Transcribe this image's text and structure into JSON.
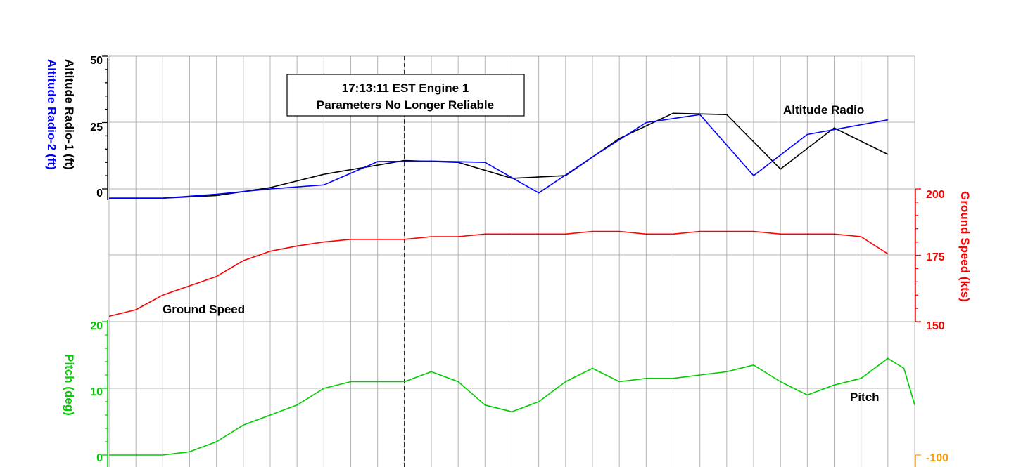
{
  "chart_data": {
    "type": "line",
    "annotations": {
      "event_line1": "17:13:11 EST Engine 1",
      "event_line2": "Parameters No Longer Reliable",
      "altitude_label": "Altitude Radio",
      "ground_speed_label": "Ground Speed",
      "pitch_label": "Pitch"
    },
    "colors": {
      "altitude_radio_1": "#000000",
      "altitude_radio_2": "#0000ff",
      "ground_speed": "#ff0000",
      "pitch": "#00cc00",
      "extra_axis": "#ff9900",
      "grid": "#b4b4b4"
    },
    "axes": {
      "altitude": {
        "label1": "Altitude Radio-1 (ft)",
        "label2": "Altitude Radio-2 (ft)",
        "ticks": [
          "50",
          "25",
          "0"
        ],
        "range": [
          0,
          50
        ]
      },
      "ground_speed": {
        "label": "Ground Speed (kts)",
        "ticks": [
          "200",
          "175",
          "150"
        ],
        "range": [
          150,
          200
        ]
      },
      "pitch": {
        "label": "Pitch (deg)",
        "ticks": [
          "20",
          "10",
          "0"
        ],
        "range": [
          0,
          20
        ]
      },
      "extra_right": {
        "ticks": [
          "-100"
        ]
      }
    },
    "grid": true,
    "x": [
      0,
      0.5,
      1,
      1.5,
      2,
      2.5,
      3,
      3.5,
      4,
      4.5,
      5,
      5.5,
      6,
      6.5,
      7,
      7.5,
      8,
      8.5,
      9,
      9.5,
      10,
      10.5,
      11,
      11.5,
      12,
      12.5,
      13,
      13.5,
      14,
      14.5,
      15
    ],
    "event_x": 5.5,
    "series": [
      {
        "key": "altitude_radio_1",
        "axis": "altitude",
        "points": [
          [
            0,
            -3.5
          ],
          [
            1,
            -3.5
          ],
          [
            2,
            -2.5
          ],
          [
            3,
            0.5
          ],
          [
            4,
            5.5
          ],
          [
            5.5,
            10.7
          ],
          [
            6.5,
            10
          ],
          [
            7.5,
            4
          ],
          [
            8.5,
            5
          ],
          [
            9.5,
            19
          ],
          [
            10.5,
            28.5
          ],
          [
            11.5,
            28
          ],
          [
            12.5,
            7.5
          ],
          [
            13.5,
            23
          ],
          [
            14.5,
            13
          ]
        ]
      },
      {
        "key": "altitude_radio_2",
        "axis": "altitude",
        "points": [
          [
            0,
            -3.5
          ],
          [
            1,
            -3.5
          ],
          [
            2,
            -2
          ],
          [
            3,
            0
          ],
          [
            4,
            1.5
          ],
          [
            5,
            10.3
          ],
          [
            6,
            10.5
          ],
          [
            7,
            10
          ],
          [
            8,
            -1.5
          ],
          [
            9,
            12
          ],
          [
            10,
            25
          ],
          [
            11,
            28
          ],
          [
            12,
            5
          ],
          [
            13,
            20.5
          ],
          [
            14.5,
            26
          ]
        ]
      },
      {
        "key": "ground_speed",
        "axis": "ground_speed",
        "points": [
          [
            0,
            152
          ],
          [
            0.5,
            154.5
          ],
          [
            1,
            160
          ],
          [
            1.5,
            163.5
          ],
          [
            2,
            167
          ],
          [
            2.5,
            173
          ],
          [
            3,
            176.5
          ],
          [
            3.5,
            178.5
          ],
          [
            4,
            180
          ],
          [
            4.5,
            181
          ],
          [
            5,
            181
          ],
          [
            5.5,
            181
          ],
          [
            6,
            182
          ],
          [
            6.5,
            182
          ],
          [
            7,
            183
          ],
          [
            7.5,
            183
          ],
          [
            8,
            183
          ],
          [
            8.5,
            183
          ],
          [
            9,
            184
          ],
          [
            9.5,
            184
          ],
          [
            10,
            183
          ],
          [
            10.5,
            183
          ],
          [
            11,
            184
          ],
          [
            11.5,
            184
          ],
          [
            12,
            184
          ],
          [
            12.5,
            183
          ],
          [
            13,
            183
          ],
          [
            13.5,
            183
          ],
          [
            14,
            182
          ],
          [
            14.5,
            175.5
          ]
        ]
      },
      {
        "key": "pitch",
        "axis": "pitch",
        "points": [
          [
            0,
            0
          ],
          [
            0.5,
            0
          ],
          [
            1,
            0
          ],
          [
            1.5,
            0.5
          ],
          [
            2,
            2
          ],
          [
            2.5,
            4.5
          ],
          [
            3,
            6
          ],
          [
            3.5,
            7.5
          ],
          [
            4,
            10
          ],
          [
            4.5,
            11
          ],
          [
            5,
            11
          ],
          [
            5.5,
            11
          ],
          [
            6,
            12.5
          ],
          [
            6.5,
            11
          ],
          [
            7,
            7.5
          ],
          [
            7.5,
            6.5
          ],
          [
            8,
            8
          ],
          [
            8.5,
            11
          ],
          [
            9,
            13
          ],
          [
            9.5,
            11
          ],
          [
            10,
            11.5
          ],
          [
            10.5,
            11.5
          ],
          [
            11,
            12
          ],
          [
            11.5,
            12.5
          ],
          [
            12,
            13.5
          ],
          [
            12.5,
            11
          ],
          [
            13,
            9
          ],
          [
            13.5,
            10.5
          ],
          [
            14,
            11.5
          ],
          [
            14.5,
            14.5
          ],
          [
            14.8,
            13
          ],
          [
            15,
            7.5
          ]
        ]
      }
    ]
  }
}
